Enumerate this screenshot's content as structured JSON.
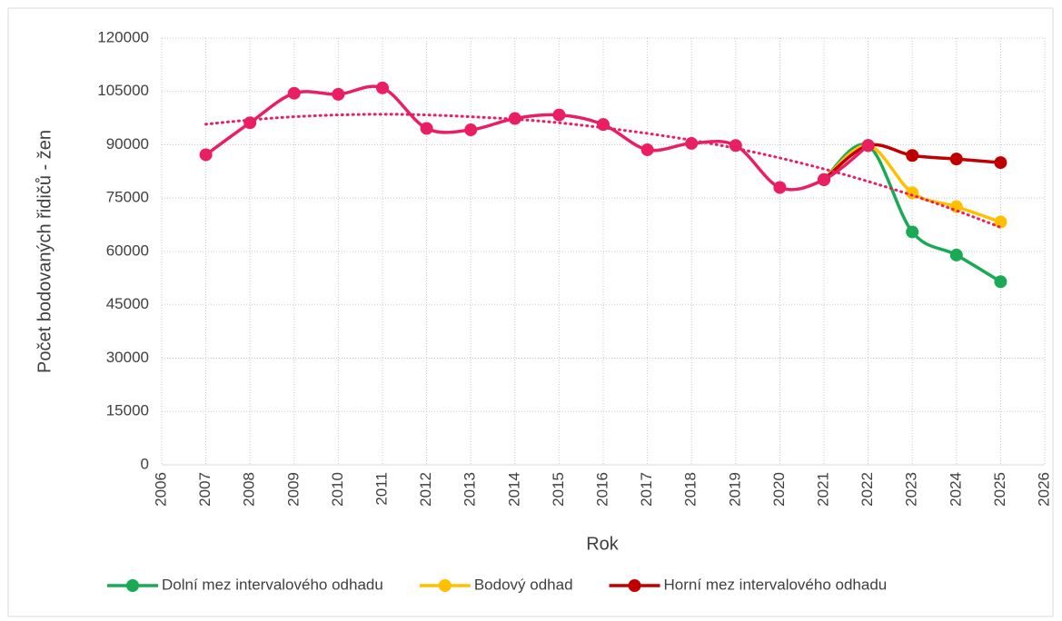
{
  "chart_data": {
    "type": "line",
    "xlabel": "Rok",
    "ylabel": "Počet bodovaných řidičů - žen",
    "xlim": [
      2006,
      2026
    ],
    "xticks": [
      2006,
      2007,
      2008,
      2009,
      2010,
      2011,
      2012,
      2013,
      2014,
      2015,
      2016,
      2017,
      2018,
      2019,
      2020,
      2021,
      2022,
      2023,
      2024,
      2025,
      2026
    ],
    "ylim": [
      0,
      120000
    ],
    "yticks": [
      0,
      15000,
      30000,
      45000,
      60000,
      75000,
      90000,
      105000,
      120000
    ],
    "grid": true,
    "legend": "bottom",
    "series": [
      {
        "name": "Dolní mez intervalového odhadu",
        "color": "#1aaa55",
        "x": [
          2021,
          2022,
          2023,
          2024,
          2025
        ],
        "values": [
          80200,
          89800,
          65500,
          59000,
          51500
        ]
      },
      {
        "name": "Bodový odhad",
        "color": "#ffc000",
        "x": [
          2021,
          2022,
          2023,
          2024,
          2025
        ],
        "values": [
          80200,
          89800,
          76500,
          72600,
          68300
        ]
      },
      {
        "name": "Horní mez intervalového odhadu",
        "color": "#c00000",
        "x": [
          2021,
          2022,
          2023,
          2024,
          2025
        ],
        "values": [
          80200,
          89800,
          87000,
          86000,
          85000
        ]
      },
      {
        "color": "#e91e63",
        "style": "dotted",
        "x": [
          2007,
          2008,
          2009,
          2010,
          2011,
          2012,
          2013,
          2014,
          2015,
          2016,
          2017,
          2018,
          2019,
          2020,
          2021,
          2022,
          2023,
          2024,
          2025
        ],
        "values": [
          95800,
          97000,
          97900,
          98400,
          98600,
          98400,
          97900,
          97200,
          96200,
          94800,
          93200,
          91300,
          89000,
          86300,
          83200,
          79700,
          75800,
          71500,
          66800
        ]
      },
      {
        "color": "#e91e63",
        "x": [
          2007,
          2008,
          2009,
          2010,
          2011,
          2012,
          2013,
          2014,
          2015,
          2016,
          2017,
          2018,
          2019,
          2020,
          2021,
          2022
        ],
        "values": [
          87200,
          96200,
          104500,
          104200,
          106000,
          94600,
          94200,
          97400,
          98400,
          95700,
          88600,
          90400,
          89800,
          78000,
          80200,
          89800
        ]
      }
    ]
  }
}
